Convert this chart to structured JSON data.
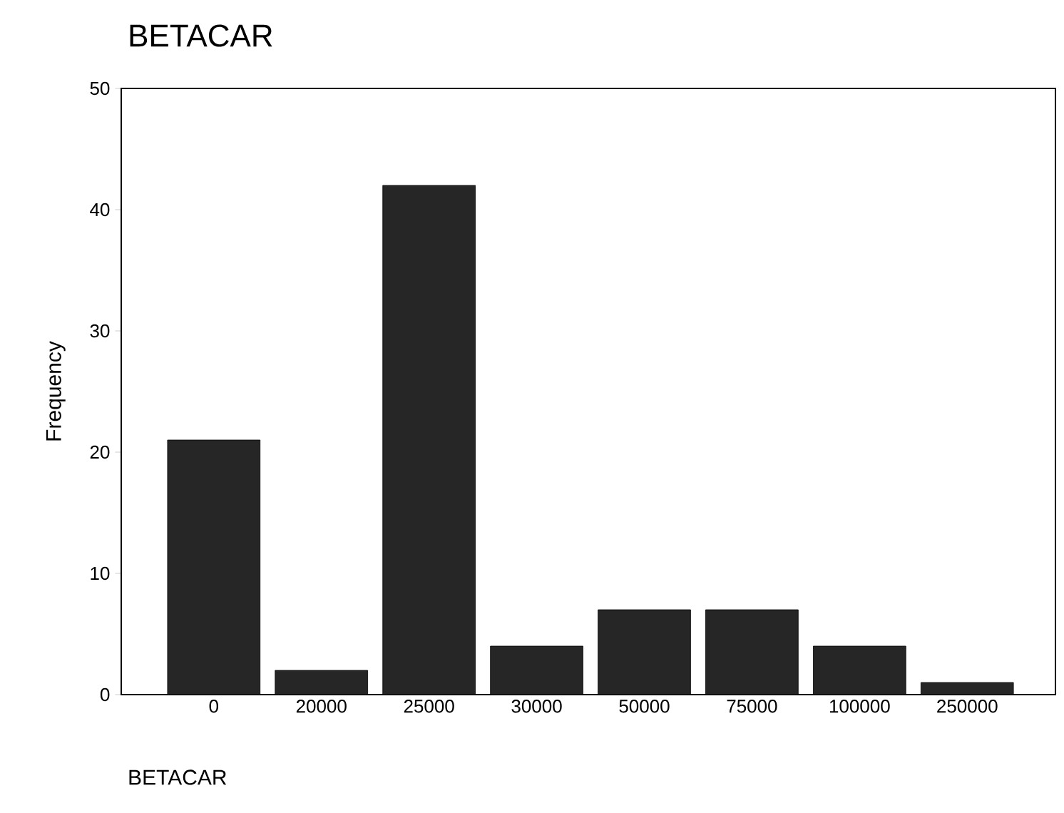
{
  "chart_data": {
    "type": "bar",
    "title": "BETACAR",
    "xlabel": "BETACAR",
    "ylabel": "Frequency",
    "categories": [
      "0",
      "20000",
      "25000",
      "30000",
      "50000",
      "75000",
      "100000",
      "250000"
    ],
    "values": [
      21,
      2,
      42,
      4,
      7,
      7,
      4,
      1
    ],
    "color": "#262626",
    "ylim": [
      0,
      50
    ],
    "yticks": [
      0,
      10,
      20,
      30,
      40,
      50
    ]
  }
}
